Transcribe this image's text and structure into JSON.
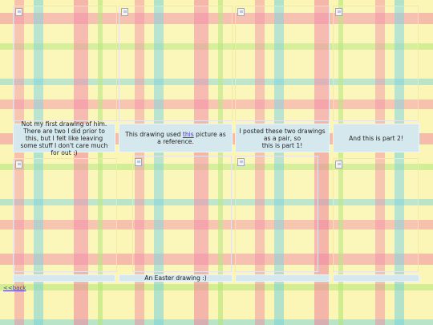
{
  "captions": [
    "Not my first drawing of him. There are two I did prior to this, but I felt like leaving some stuff I don't care much for out :)",
    {
      "before": "This drawing used ",
      "link": "this",
      "after": " picture as a reference."
    },
    "I posted these two drawings as a pair, so\nthis is part 1!",
    "And this is part 2!",
    "",
    "An Easter drawing :)",
    "",
    ""
  ],
  "back_link": "<<back"
}
